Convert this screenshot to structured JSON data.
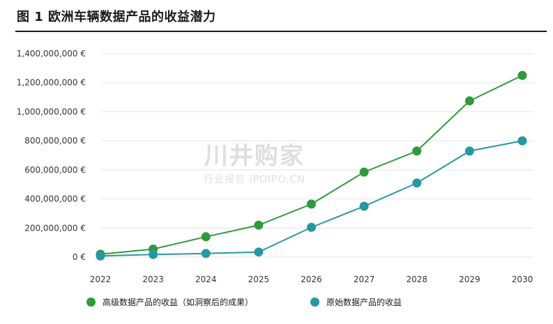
{
  "title": "图 1 欧洲车辆数据产品的收益潜力",
  "watermark": {
    "main": "川井购家",
    "sub": "行业报告 IPOIPO.CN"
  },
  "colors": {
    "series1": "#2e9a3c",
    "series2": "#2598a3",
    "grid": "#e4e4e4",
    "title_rule": "#1a1a1a"
  },
  "chart_data": {
    "type": "line",
    "x": [
      "2022",
      "2023",
      "2024",
      "2025",
      "2026",
      "2027",
      "2028",
      "2029",
      "2030"
    ],
    "ylim": [
      0,
      1400000000
    ],
    "yticks": [
      0,
      200000000,
      400000000,
      600000000,
      800000000,
      1000000000,
      1200000000,
      1400000000
    ],
    "ytick_labels": [
      "0 €",
      "200,000,000 €",
      "400,000,000 €",
      "600,000,000 €",
      "800,000,000 €",
      "1,000,000,000 €",
      "1,200,000,000 €",
      "1,400,000,000 €"
    ],
    "grid": true,
    "legend_position": "bottom",
    "series": [
      {
        "name": "高级数据产品的收益（如洞察后的成果）",
        "values": [
          20000000,
          55000000,
          140000000,
          220000000,
          365000000,
          585000000,
          730000000,
          1075000000,
          1250000000
        ]
      },
      {
        "name": "原始数据产品的收益",
        "values": [
          8000000,
          18000000,
          25000000,
          35000000,
          205000000,
          350000000,
          510000000,
          730000000,
          800000000
        ]
      }
    ]
  }
}
